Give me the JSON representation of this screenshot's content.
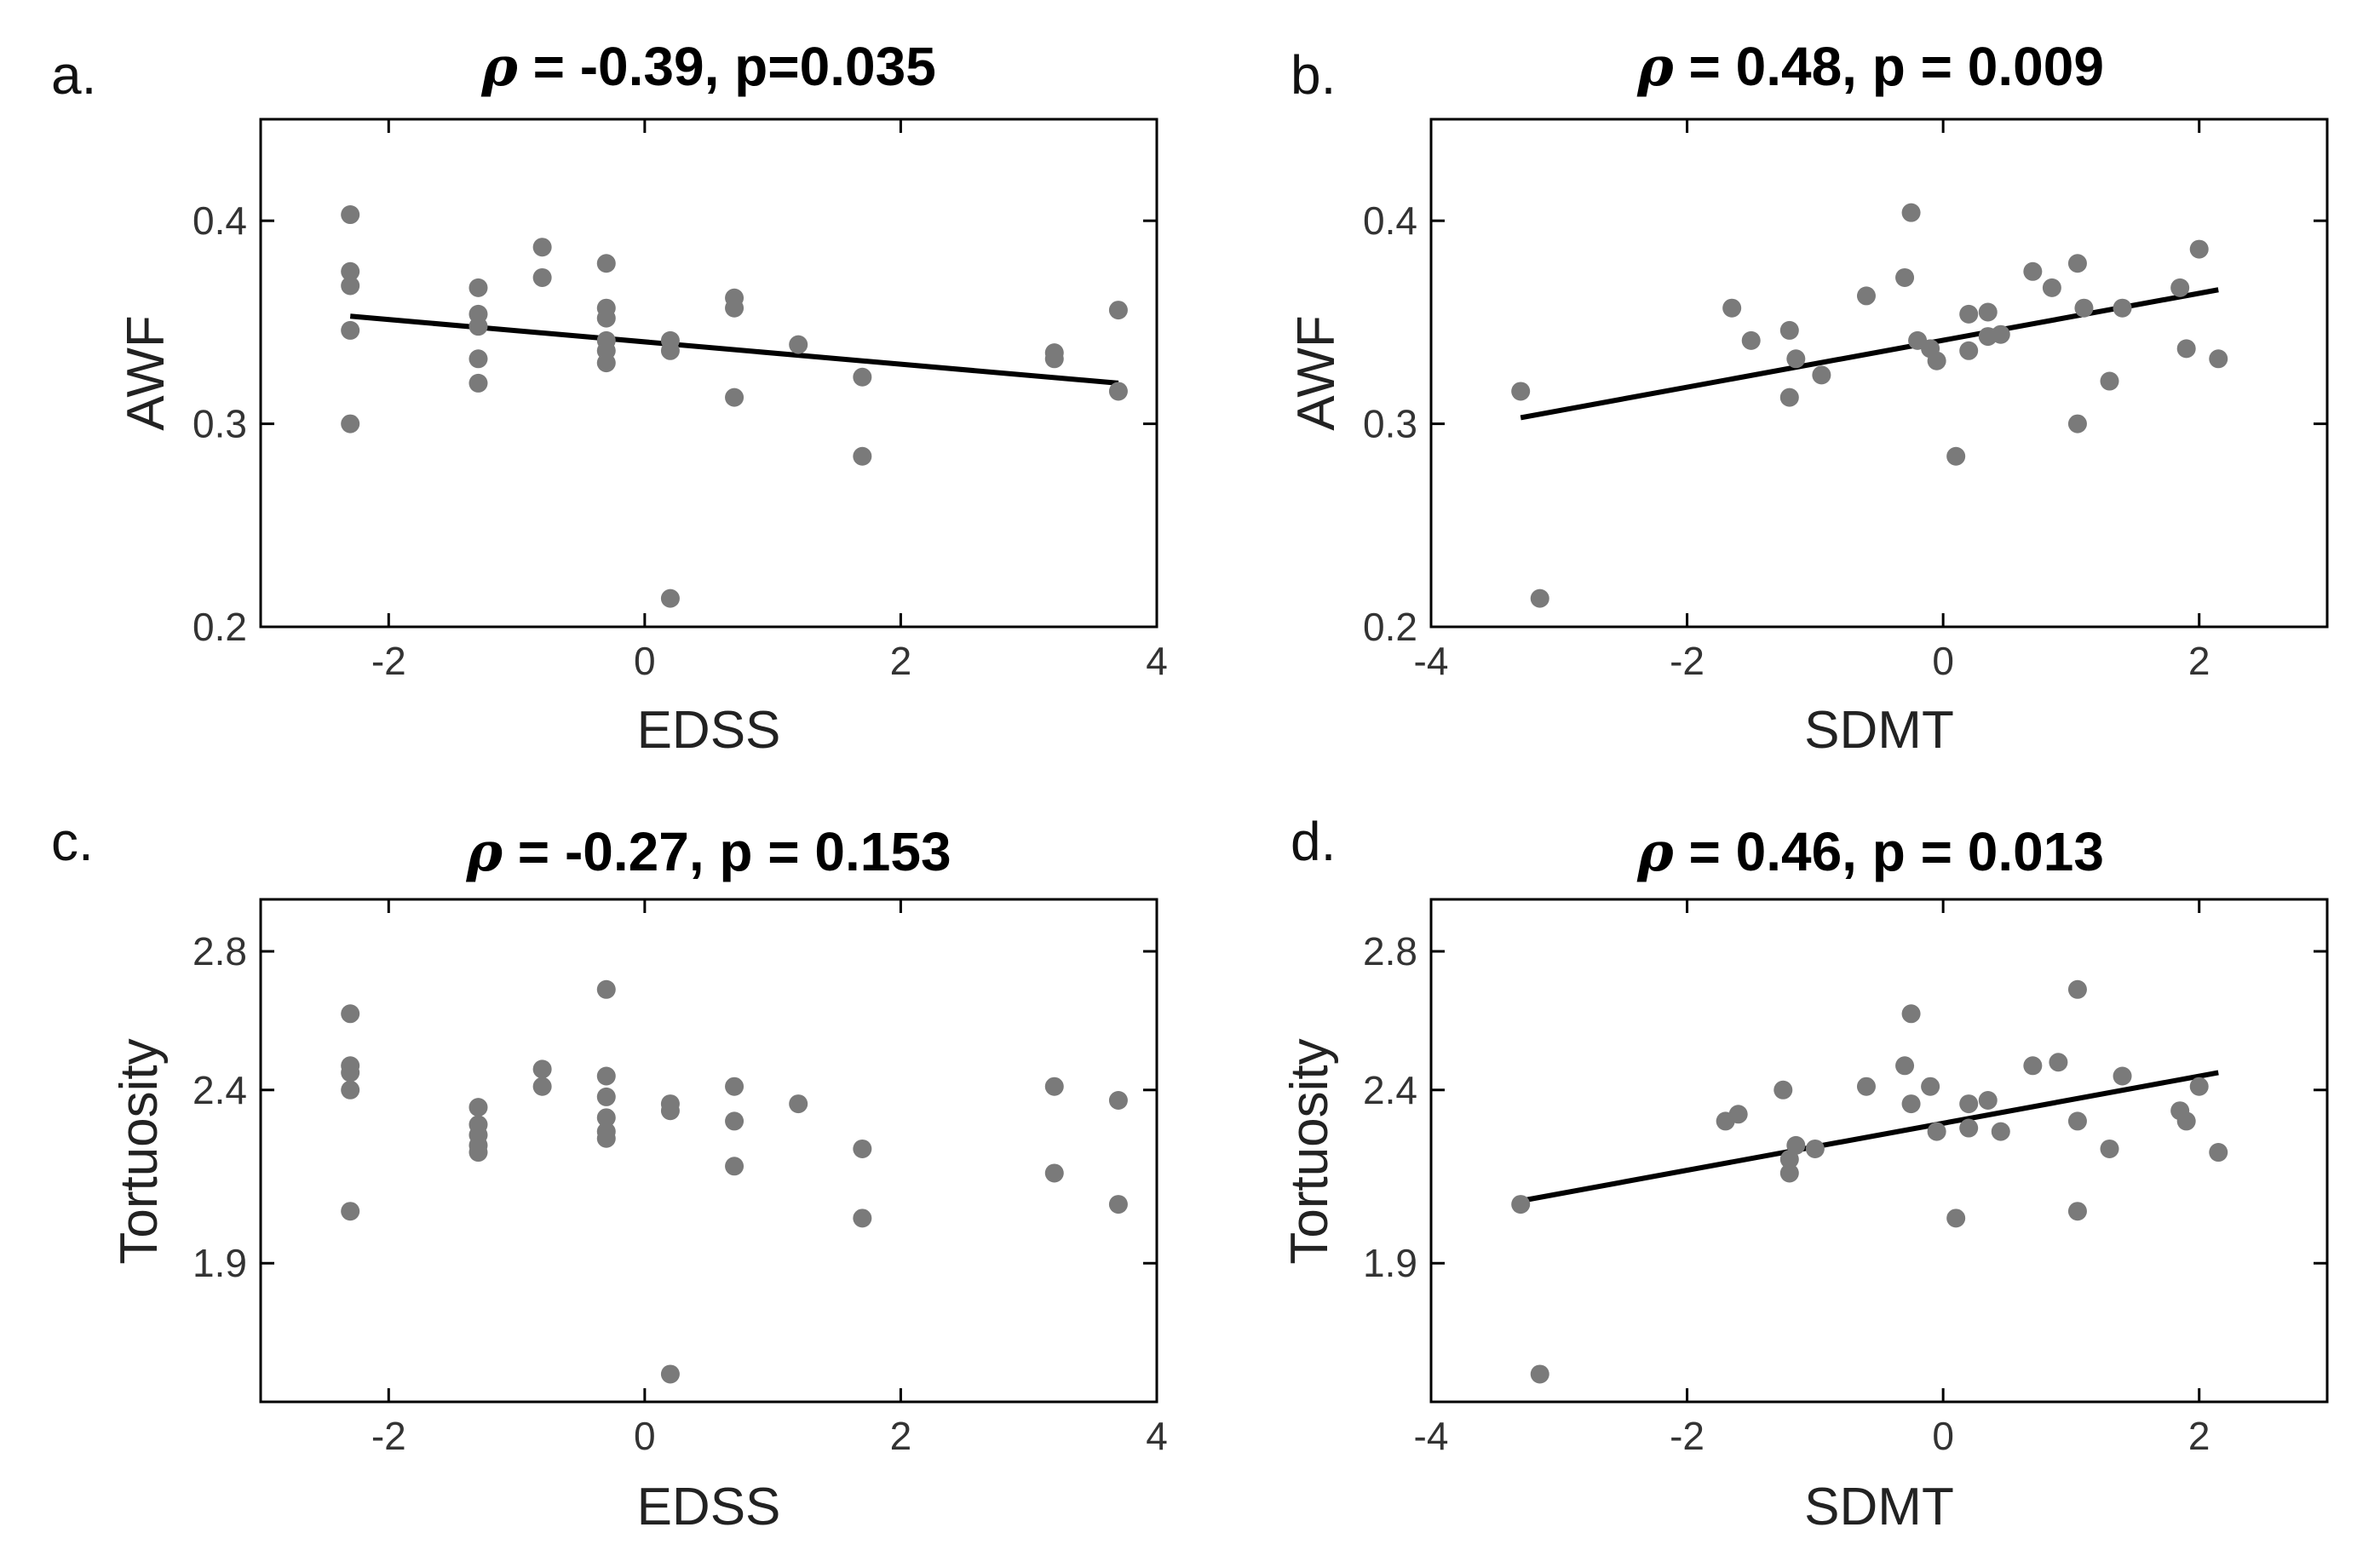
{
  "figure": {
    "name": "correlation-scatter-panels"
  },
  "chart_data": [
    {
      "type": "scatter",
      "panel": "a.",
      "title_symbol": "ρ",
      "title_text": " = -0.39, p=0.035",
      "xlabel": "EDSS",
      "ylabel": "AWF",
      "xlim": [
        -3,
        4
      ],
      "ylim": [
        0.2,
        0.45
      ],
      "xticks": [
        -2,
        0,
        2,
        4
      ],
      "yticks": [
        0.2,
        0.3,
        0.4
      ],
      "ytick_labels": [
        "0.2",
        "0.3",
        "0.4"
      ],
      "fit": [
        [
          -2.3,
          0.353
        ],
        [
          3.7,
          0.32
        ]
      ],
      "points": [
        [
          -2.3,
          0.403
        ],
        [
          -2.3,
          0.375
        ],
        [
          -2.3,
          0.368
        ],
        [
          -2.3,
          0.346
        ],
        [
          -2.3,
          0.3
        ],
        [
          -1.3,
          0.367
        ],
        [
          -1.3,
          0.354
        ],
        [
          -1.3,
          0.348
        ],
        [
          -1.3,
          0.332
        ],
        [
          -1.3,
          0.32
        ],
        [
          -0.8,
          0.387
        ],
        [
          -0.8,
          0.372
        ],
        [
          -0.3,
          0.379
        ],
        [
          -0.3,
          0.357
        ],
        [
          -0.3,
          0.352
        ],
        [
          -0.3,
          0.341
        ],
        [
          -0.3,
          0.336
        ],
        [
          -0.3,
          0.33
        ],
        [
          0.2,
          0.341
        ],
        [
          0.2,
          0.336
        ],
        [
          0.2,
          0.214
        ],
        [
          0.7,
          0.362
        ],
        [
          0.7,
          0.357
        ],
        [
          0.7,
          0.313
        ],
        [
          1.2,
          0.339
        ],
        [
          1.7,
          0.323
        ],
        [
          1.7,
          0.284
        ],
        [
          3.2,
          0.335
        ],
        [
          3.2,
          0.332
        ],
        [
          3.7,
          0.356
        ],
        [
          3.7,
          0.316
        ]
      ]
    },
    {
      "type": "scatter",
      "panel": "b.",
      "title_symbol": "ρ",
      "title_text": " = 0.48, p = 0.009",
      "xlabel": "SDMT",
      "ylabel": "AWF",
      "xlim": [
        -4,
        3
      ],
      "ylim": [
        0.2,
        0.45
      ],
      "xticks": [
        -4,
        -2,
        0,
        2
      ],
      "yticks": [
        0.2,
        0.3,
        0.4
      ],
      "ytick_labels": [
        "0.2",
        "0.3",
        "0.4"
      ],
      "fit": [
        [
          -3.3,
          0.303
        ],
        [
          2.15,
          0.366
        ]
      ],
      "points": [
        [
          -3.3,
          0.316
        ],
        [
          -3.15,
          0.214
        ],
        [
          -1.65,
          0.357
        ],
        [
          -1.5,
          0.341
        ],
        [
          -1.2,
          0.346
        ],
        [
          -1.2,
          0.313
        ],
        [
          -1.15,
          0.332
        ],
        [
          -0.95,
          0.324
        ],
        [
          -0.6,
          0.363
        ],
        [
          -0.25,
          0.404
        ],
        [
          -0.3,
          0.372
        ],
        [
          -0.2,
          0.341
        ],
        [
          -0.1,
          0.337
        ],
        [
          -0.05,
          0.331
        ],
        [
          0.1,
          0.284
        ],
        [
          0.2,
          0.354
        ],
        [
          0.2,
          0.336
        ],
        [
          0.35,
          0.355
        ],
        [
          0.35,
          0.343
        ],
        [
          0.45,
          0.344
        ],
        [
          0.7,
          0.375
        ],
        [
          0.85,
          0.367
        ],
        [
          1.05,
          0.379
        ],
        [
          1.05,
          0.3
        ],
        [
          1.1,
          0.357
        ],
        [
          1.3,
          0.321
        ],
        [
          1.4,
          0.357
        ],
        [
          1.85,
          0.367
        ],
        [
          1.9,
          0.337
        ],
        [
          2.0,
          0.386
        ],
        [
          2.15,
          0.332
        ]
      ]
    },
    {
      "type": "scatter",
      "panel": "c.",
      "title_symbol": "ρ",
      "title_text": " = -0.27, p = 0.153",
      "xlabel": "EDSS",
      "ylabel": "Tortuosity",
      "xlim": [
        -3,
        4
      ],
      "ylim": [
        1.5,
        2.95
      ],
      "xticks": [
        -2,
        0,
        2,
        4
      ],
      "yticks": [
        1.9,
        2.4,
        2.8
      ],
      "ytick_labels": [
        "1.9",
        "2.4",
        "2.8"
      ],
      "points": [
        [
          -2.3,
          2.62
        ],
        [
          -2.3,
          2.47
        ],
        [
          -2.3,
          2.45
        ],
        [
          -2.3,
          2.4
        ],
        [
          -2.3,
          2.05
        ],
        [
          -1.3,
          2.35
        ],
        [
          -1.3,
          2.3
        ],
        [
          -1.3,
          2.27
        ],
        [
          -1.3,
          2.24
        ],
        [
          -1.3,
          2.22
        ],
        [
          -0.8,
          2.46
        ],
        [
          -0.8,
          2.41
        ],
        [
          -0.3,
          2.69
        ],
        [
          -0.3,
          2.44
        ],
        [
          -0.3,
          2.38
        ],
        [
          -0.3,
          2.32
        ],
        [
          -0.3,
          2.28
        ],
        [
          -0.3,
          2.26
        ],
        [
          0.2,
          2.36
        ],
        [
          0.2,
          2.34
        ],
        [
          0.2,
          1.58
        ],
        [
          0.7,
          2.41
        ],
        [
          0.7,
          2.31
        ],
        [
          0.7,
          2.18
        ],
        [
          1.2,
          2.36
        ],
        [
          1.7,
          2.23
        ],
        [
          1.7,
          2.03
        ],
        [
          3.2,
          2.41
        ],
        [
          3.2,
          2.16
        ],
        [
          3.7,
          2.37
        ],
        [
          3.7,
          2.07
        ]
      ]
    },
    {
      "type": "scatter",
      "panel": "d.",
      "title_symbol": "ρ",
      "title_text": " = 0.46, p = 0.013",
      "xlabel": "SDMT",
      "ylabel": "Tortuosity",
      "xlim": [
        -4,
        3
      ],
      "ylim": [
        1.5,
        2.95
      ],
      "xticks": [
        -4,
        -2,
        0,
        2
      ],
      "yticks": [
        1.9,
        2.4,
        2.8
      ],
      "ytick_labels": [
        "1.9",
        "2.4",
        "2.8"
      ],
      "fit": [
        [
          -3.3,
          2.08
        ],
        [
          2.15,
          2.45
        ]
      ],
      "points": [
        [
          -3.3,
          2.07
        ],
        [
          -3.15,
          1.58
        ],
        [
          -1.7,
          2.31
        ],
        [
          -1.6,
          2.33
        ],
        [
          -1.25,
          2.4
        ],
        [
          -1.2,
          2.2
        ],
        [
          -1.2,
          2.16
        ],
        [
          -1.15,
          2.24
        ],
        [
          -1.0,
          2.23
        ],
        [
          -0.6,
          2.41
        ],
        [
          -0.25,
          2.62
        ],
        [
          -0.3,
          2.47
        ],
        [
          -0.25,
          2.36
        ],
        [
          -0.1,
          2.41
        ],
        [
          -0.05,
          2.28
        ],
        [
          0.1,
          2.03
        ],
        [
          0.2,
          2.36
        ],
        [
          0.2,
          2.29
        ],
        [
          0.35,
          2.37
        ],
        [
          0.45,
          2.28
        ],
        [
          0.7,
          2.47
        ],
        [
          0.9,
          2.48
        ],
        [
          1.05,
          2.69
        ],
        [
          1.05,
          2.31
        ],
        [
          1.05,
          2.05
        ],
        [
          1.3,
          2.23
        ],
        [
          1.4,
          2.44
        ],
        [
          1.85,
          2.34
        ],
        [
          1.9,
          2.31
        ],
        [
          2.0,
          2.41
        ],
        [
          2.15,
          2.22
        ]
      ]
    }
  ]
}
